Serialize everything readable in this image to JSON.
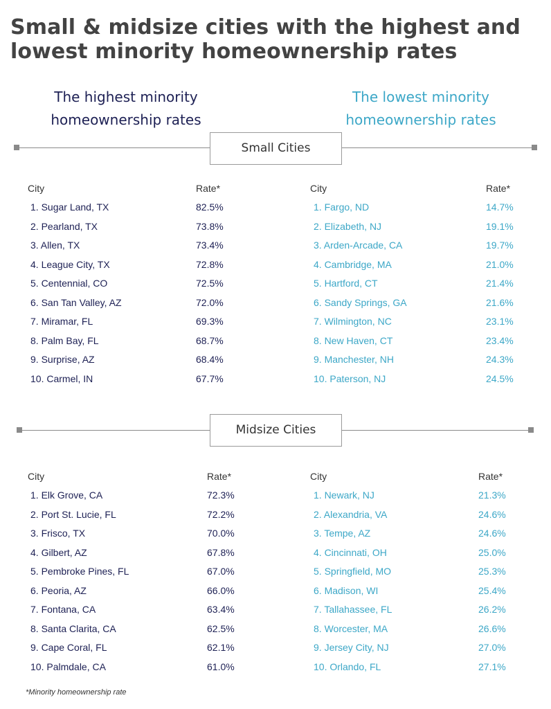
{
  "title": "Small & midsize cities with the highest and lowest minority homeownership rates",
  "subtitles": {
    "highest": "The highest minority homeownership rates",
    "lowest": "The lowest minority homeownership rates"
  },
  "colors": {
    "dark": "#1d2054",
    "light": "#3ca7c7"
  },
  "sections": [
    {
      "label": "Small Cities",
      "city_header": "City",
      "rate_header": "Rate*",
      "highest": [
        {
          "city": "1. Sugar Land, TX",
          "rate": "82.5%"
        },
        {
          "city": "2. Pearland, TX",
          "rate": "73.8%"
        },
        {
          "city": "3. Allen, TX",
          "rate": "73.4%"
        },
        {
          "city": "4. League City, TX",
          "rate": "72.8%"
        },
        {
          "city": "5. Centennial, CO",
          "rate": "72.5%"
        },
        {
          "city": "6. San Tan Valley, AZ",
          "rate": "72.0%"
        },
        {
          "city": "7. Miramar, FL",
          "rate": "69.3%"
        },
        {
          "city": "8. Palm Bay, FL",
          "rate": "68.7%"
        },
        {
          "city": "9. Surprise, AZ",
          "rate": "68.4%"
        },
        {
          "city": "10. Carmel, IN",
          "rate": "67.7%"
        }
      ],
      "lowest": [
        {
          "city": "1. Fargo, ND",
          "rate": "14.7%"
        },
        {
          "city": "2. Elizabeth, NJ",
          "rate": "19.1%"
        },
        {
          "city": "3. Arden-Arcade, CA",
          "rate": "19.7%"
        },
        {
          "city": "4. Cambridge, MA",
          "rate": "21.0%"
        },
        {
          "city": "5. Hartford, CT",
          "rate": "21.4%"
        },
        {
          "city": "6. Sandy Springs, GA",
          "rate": "21.6%"
        },
        {
          "city": "7. Wilmington, NC",
          "rate": "23.1%"
        },
        {
          "city": "8. New Haven, CT",
          "rate": "23.4%"
        },
        {
          "city": "9. Manchester, NH",
          "rate": "24.3%"
        },
        {
          "city": "10. Paterson, NJ",
          "rate": "24.5%"
        }
      ]
    },
    {
      "label": "Midsize Cities",
      "city_header": "City",
      "rate_header": "Rate*",
      "highest": [
        {
          "city": "1. Elk Grove, CA",
          "rate": "72.3%"
        },
        {
          "city": "2. Port St. Lucie, FL",
          "rate": "72.2%"
        },
        {
          "city": "3. Frisco, TX",
          "rate": "70.0%"
        },
        {
          "city": "4. Gilbert, AZ",
          "rate": "67.8%"
        },
        {
          "city": "5. Pembroke Pines, FL",
          "rate": "67.0%"
        },
        {
          "city": "6. Peoria, AZ",
          "rate": "66.0%"
        },
        {
          "city": "7. Fontana, CA",
          "rate": "63.4%"
        },
        {
          "city": "8. Santa Clarita, CA",
          "rate": "62.5%"
        },
        {
          "city": "9. Cape Coral, FL",
          "rate": "62.1%"
        },
        {
          "city": "10. Palmdale, CA",
          "rate": "61.0%"
        }
      ],
      "lowest": [
        {
          "city": "1. Newark, NJ",
          "rate": "21.3%"
        },
        {
          "city": "2. Alexandria, VA",
          "rate": "24.6%"
        },
        {
          "city": "3. Tempe, AZ",
          "rate": "24.6%"
        },
        {
          "city": "4. Cincinnati, OH",
          "rate": "25.0%"
        },
        {
          "city": "5. Springfield, MO",
          "rate": "25.3%"
        },
        {
          "city": "6. Madison, WI",
          "rate": "25.4%"
        },
        {
          "city": "7. Tallahassee, FL",
          "rate": "26.2%"
        },
        {
          "city": "8. Worcester, MA",
          "rate": "26.6%"
        },
        {
          "city": "9. Jersey City, NJ",
          "rate": "27.0%"
        },
        {
          "city": "10. Orlando, FL",
          "rate": "27.1%"
        }
      ]
    }
  ],
  "footnote": "*Minority homeownership rate"
}
